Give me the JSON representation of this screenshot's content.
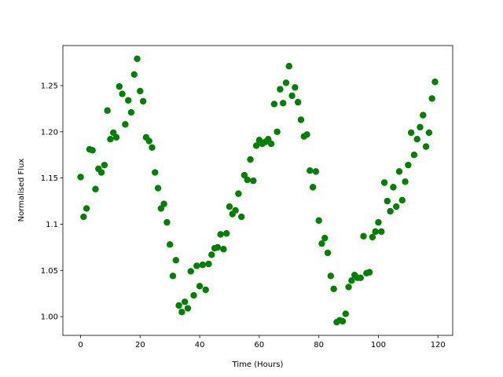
{
  "chart_data": {
    "type": "scatter",
    "x_label": "Time (Hours)",
    "y_label": "Normalised Flux",
    "color": "#008000",
    "x": [
      0,
      1,
      2,
      3,
      4,
      5,
      6,
      7,
      8,
      9,
      10,
      11,
      12,
      13,
      14,
      15,
      16,
      17,
      18,
      19,
      20,
      21,
      22,
      23,
      24,
      25,
      26,
      27,
      28,
      29,
      30,
      31,
      32,
      33,
      34,
      35,
      36,
      37,
      38,
      39,
      40,
      41,
      42,
      43,
      44,
      45,
      46,
      47,
      48,
      49,
      50,
      51,
      52,
      53,
      54,
      55,
      56,
      57,
      58,
      59,
      60,
      61,
      62,
      63,
      64,
      65,
      66,
      67,
      68,
      69,
      70,
      71,
      72,
      73,
      74,
      75,
      76,
      77,
      78,
      79,
      80,
      81,
      82,
      83,
      84,
      85,
      86,
      87,
      88,
      89,
      90,
      91,
      92,
      93,
      94,
      95,
      96,
      97,
      98,
      99,
      100,
      101,
      102,
      103,
      104,
      105,
      106,
      107,
      108,
      109,
      110,
      111,
      112,
      113,
      114,
      115,
      116,
      117,
      118,
      119
    ],
    "values": [
      1.151,
      1.108,
      1.117,
      1.181,
      1.18,
      1.138,
      1.16,
      1.156,
      1.164,
      1.223,
      1.192,
      1.199,
      1.194,
      1.249,
      1.241,
      1.208,
      1.234,
      1.221,
      1.262,
      1.279,
      1.244,
      1.233,
      1.194,
      1.19,
      1.183,
      1.156,
      1.139,
      1.117,
      1.122,
      1.102,
      1.078,
      1.044,
      1.061,
      1.012,
      1.005,
      1.016,
      1.009,
      1.049,
      1.023,
      1.055,
      1.033,
      1.056,
      1.029,
      1.057,
      1.067,
      1.074,
      1.075,
      1.089,
      1.073,
      1.09,
      1.119,
      1.111,
      1.115,
      1.133,
      1.108,
      1.153,
      1.148,
      1.17,
      1.147,
      1.185,
      1.191,
      1.187,
      1.189,
      1.192,
      1.187,
      1.23,
      1.2,
      1.246,
      1.231,
      1.253,
      1.271,
      1.239,
      1.248,
      1.232,
      1.213,
      1.195,
      1.197,
      1.158,
      1.14,
      1.157,
      1.104,
      1.079,
      1.085,
      1.069,
      1.044,
      1.03,
      0.994,
      0.996,
      0.995,
      1.003,
      1.032,
      1.039,
      1.045,
      1.042,
      1.042,
      1.087,
      1.047,
      1.048,
      1.086,
      1.092,
      1.102,
      1.092,
      1.145,
      1.125,
      1.114,
      1.14,
      1.119,
      1.157,
      1.126,
      1.146,
      1.164,
      1.199,
      1.175,
      1.192,
      1.205,
      1.218,
      1.184,
      1.199,
      1.236,
      1.254
    ],
    "xlim": [
      -5.95,
      124.95
    ],
    "ylim": [
      0.9797,
      1.2933
    ],
    "xticks": [
      0,
      20,
      40,
      60,
      80,
      100,
      120
    ],
    "yticks": [
      {
        "value": 1.0,
        "label": "1.00"
      },
      {
        "value": 1.05,
        "label": "1.05"
      },
      1.1,
      1.15,
      {
        "value": 1.2,
        "label": "1.20"
      },
      1.25
    ]
  }
}
